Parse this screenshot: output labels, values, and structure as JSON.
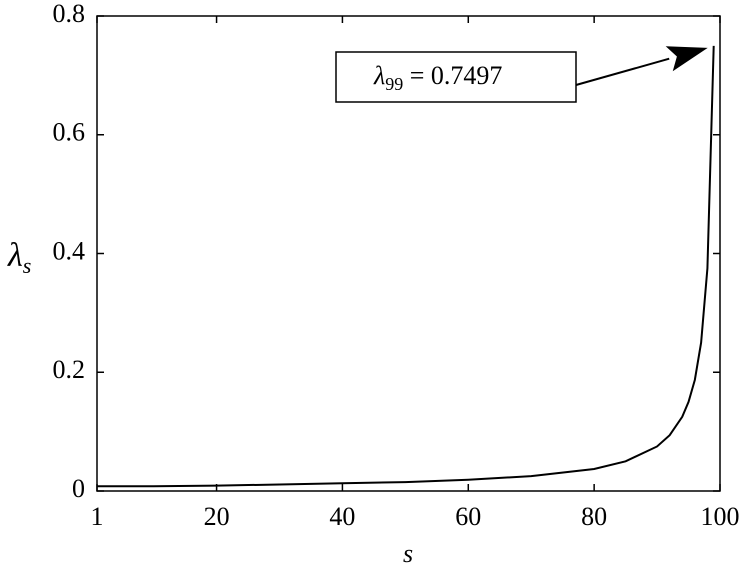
{
  "chart_data": {
    "type": "line",
    "x_label": "s",
    "y_label": {
      "symbol": "λ",
      "subscript": "s"
    },
    "annotation": {
      "symbol": "λ",
      "subscript": "99",
      "text": " = 0.7497",
      "x": 99,
      "y": 0.7497
    },
    "x": [
      1,
      10,
      20,
      30,
      40,
      50,
      60,
      70,
      80,
      85,
      90,
      92,
      94,
      95,
      96,
      97,
      98,
      99
    ],
    "values": [
      0.008,
      0.008,
      0.009,
      0.011,
      0.013,
      0.015,
      0.019,
      0.025,
      0.037,
      0.05,
      0.075,
      0.094,
      0.125,
      0.15,
      0.187,
      0.25,
      0.375,
      0.7497
    ],
    "color": "#000000",
    "xlim": [
      1,
      100
    ],
    "xticks": [
      1,
      20,
      40,
      60,
      80,
      100
    ],
    "ylim": [
      0,
      0.8
    ],
    "yticks": [
      0,
      0.2,
      0.4,
      0.6,
      0.8
    ]
  }
}
